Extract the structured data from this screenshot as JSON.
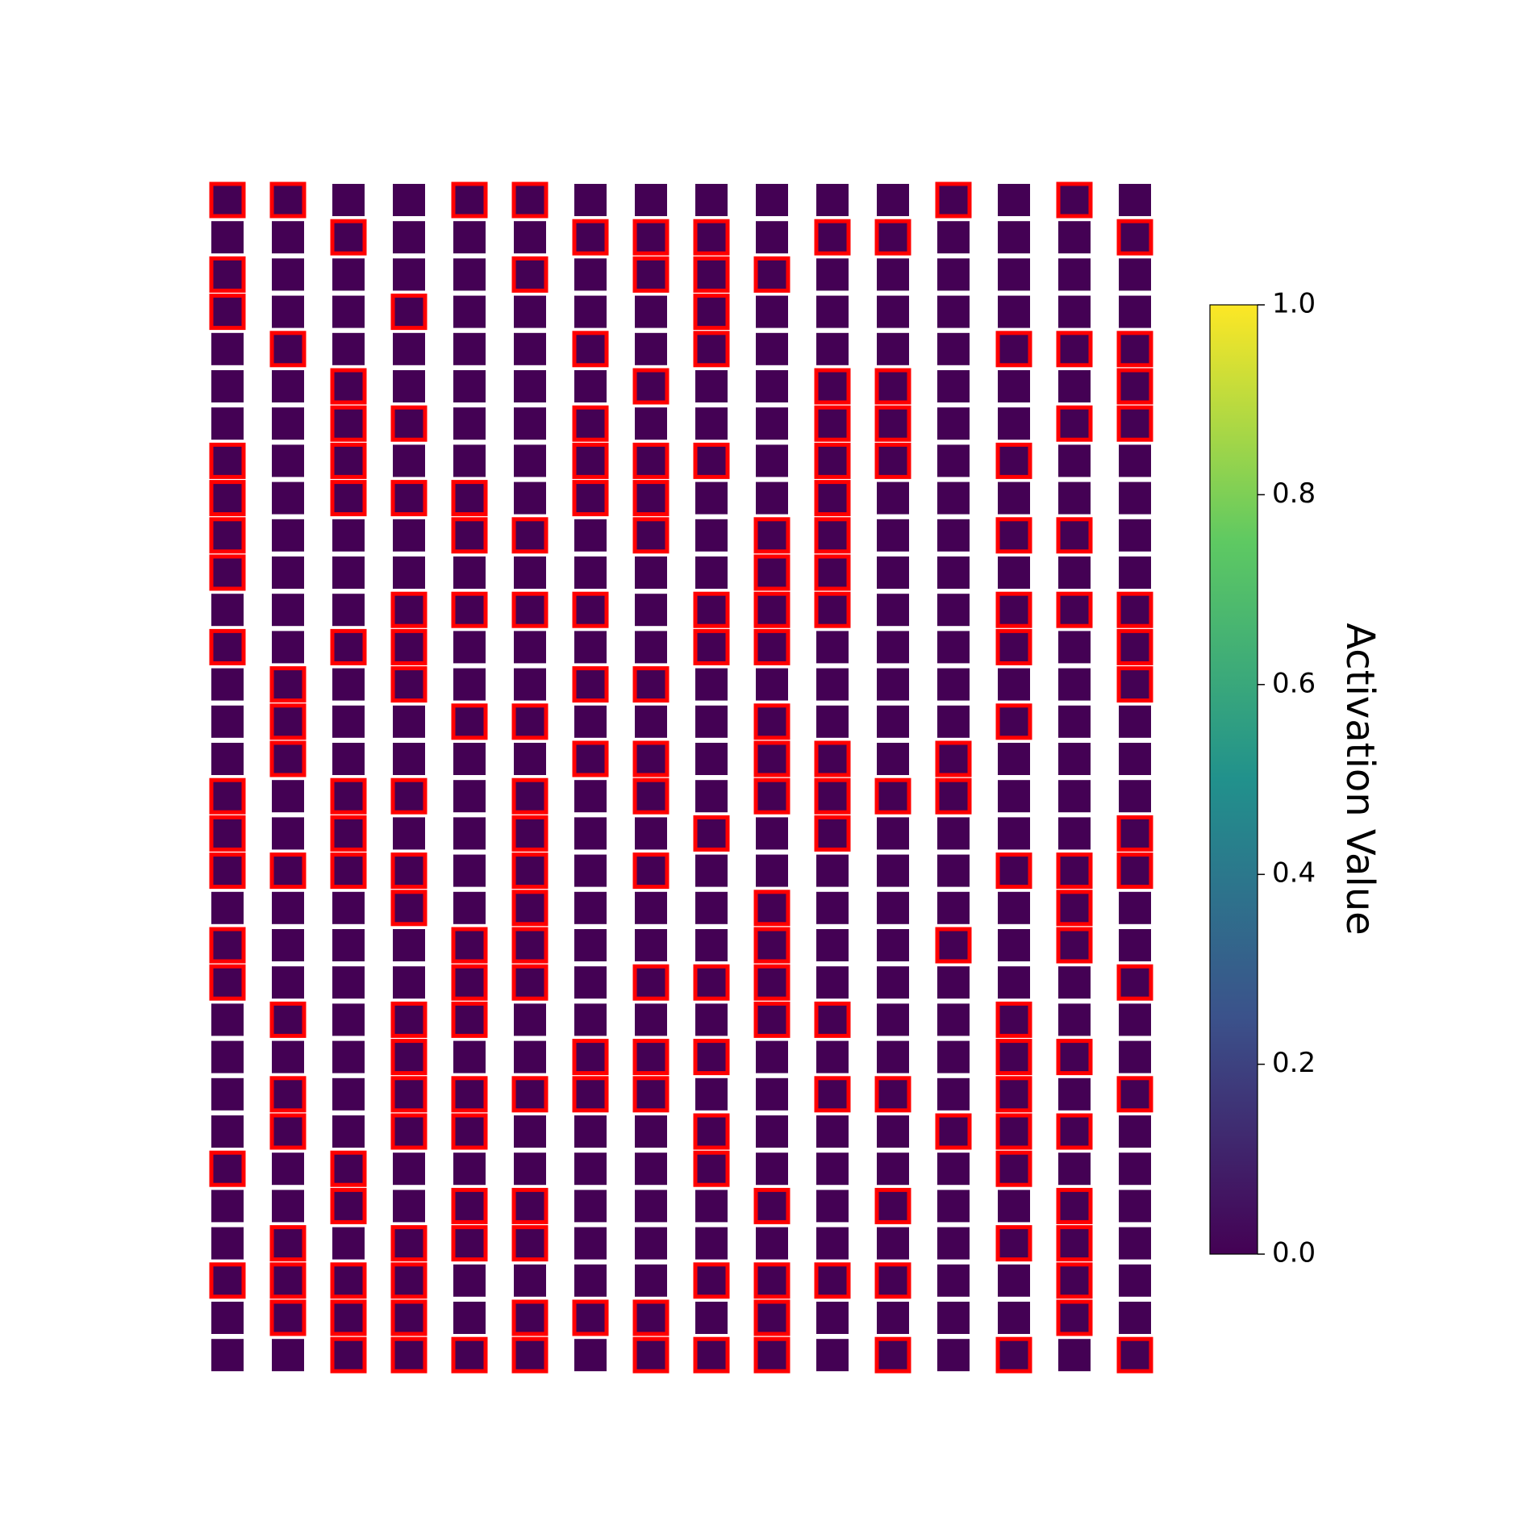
{
  "chart_data": {
    "type": "image-grid",
    "colorbar_label": "Activation Value",
    "colormap": [
      "#440154",
      "#3b528b",
      "#21918c",
      "#5ec962",
      "#fde725"
    ],
    "highlight_color": "#ff0000",
    "ylim": [
      0,
      1
    ],
    "yticks": [
      {
        "value": 0,
        "label": "0.0"
      },
      0.2,
      0.4,
      0.6,
      0.8,
      {
        "value": 1,
        "label": "1.0"
      }
    ],
    "highlighted": [
      [
        1,
        1,
        0,
        0,
        1,
        1,
        0,
        0,
        0,
        0,
        0,
        0,
        1,
        0,
        1,
        0
      ],
      [
        0,
        0,
        1,
        0,
        0,
        0,
        1,
        1,
        1,
        0,
        1,
        1,
        0,
        0,
        0,
        1
      ],
      [
        1,
        0,
        0,
        0,
        0,
        1,
        0,
        1,
        1,
        1,
        0,
        0,
        0,
        0,
        0,
        0
      ],
      [
        1,
        0,
        0,
        1,
        0,
        0,
        0,
        0,
        1,
        0,
        0,
        0,
        0,
        0,
        0,
        0
      ],
      [
        0,
        1,
        0,
        0,
        0,
        0,
        1,
        0,
        1,
        0,
        0,
        0,
        0,
        1,
        1,
        1
      ],
      [
        0,
        0,
        1,
        0,
        0,
        0,
        0,
        1,
        0,
        0,
        1,
        1,
        0,
        0,
        0,
        1
      ],
      [
        0,
        0,
        1,
        1,
        0,
        0,
        1,
        0,
        0,
        0,
        1,
        1,
        0,
        0,
        1,
        1
      ],
      [
        1,
        0,
        1,
        0,
        0,
        0,
        1,
        1,
        1,
        0,
        1,
        1,
        0,
        1,
        0,
        0
      ],
      [
        1,
        0,
        1,
        1,
        1,
        0,
        1,
        1,
        0,
        0,
        1,
        0,
        0,
        0,
        0,
        0
      ],
      [
        1,
        0,
        0,
        0,
        1,
        1,
        0,
        1,
        0,
        1,
        1,
        0,
        0,
        1,
        1,
        0
      ],
      [
        1,
        0,
        0,
        0,
        0,
        0,
        0,
        0,
        0,
        1,
        1,
        0,
        0,
        0,
        0,
        0
      ],
      [
        0,
        0,
        0,
        1,
        1,
        1,
        1,
        0,
        1,
        1,
        1,
        0,
        0,
        1,
        1,
        1
      ],
      [
        1,
        0,
        1,
        1,
        0,
        0,
        0,
        0,
        1,
        1,
        0,
        0,
        0,
        1,
        0,
        1
      ],
      [
        0,
        1,
        0,
        1,
        0,
        0,
        1,
        1,
        0,
        0,
        0,
        0,
        0,
        0,
        0,
        1
      ],
      [
        0,
        1,
        0,
        0,
        1,
        1,
        0,
        0,
        0,
        1,
        0,
        0,
        0,
        1,
        0,
        0
      ],
      [
        0,
        1,
        0,
        0,
        0,
        0,
        1,
        1,
        0,
        1,
        1,
        0,
        1,
        0,
        0,
        0
      ],
      [
        1,
        0,
        1,
        1,
        0,
        1,
        0,
        1,
        0,
        1,
        1,
        1,
        1,
        0,
        0,
        0
      ],
      [
        1,
        0,
        1,
        0,
        0,
        1,
        0,
        0,
        1,
        0,
        1,
        0,
        0,
        0,
        0,
        1
      ],
      [
        1,
        1,
        1,
        1,
        0,
        1,
        0,
        1,
        0,
        0,
        0,
        0,
        0,
        1,
        1,
        1
      ],
      [
        0,
        0,
        0,
        1,
        0,
        1,
        0,
        0,
        0,
        1,
        0,
        0,
        0,
        0,
        1,
        0
      ],
      [
        1,
        0,
        0,
        0,
        1,
        1,
        0,
        0,
        0,
        1,
        0,
        0,
        1,
        0,
        1,
        0
      ],
      [
        1,
        0,
        0,
        0,
        1,
        1,
        0,
        1,
        1,
        1,
        0,
        0,
        0,
        0,
        0,
        1
      ],
      [
        0,
        1,
        0,
        1,
        1,
        0,
        0,
        0,
        0,
        1,
        1,
        0,
        0,
        1,
        0,
        0
      ],
      [
        0,
        0,
        0,
        1,
        0,
        0,
        1,
        1,
        1,
        0,
        0,
        0,
        0,
        1,
        1,
        0
      ],
      [
        0,
        1,
        0,
        1,
        1,
        1,
        1,
        1,
        0,
        0,
        1,
        1,
        0,
        1,
        0,
        1
      ],
      [
        0,
        1,
        0,
        1,
        1,
        0,
        0,
        0,
        1,
        0,
        0,
        0,
        1,
        1,
        1,
        0
      ],
      [
        1,
        0,
        1,
        0,
        0,
        0,
        0,
        0,
        1,
        0,
        0,
        0,
        0,
        1,
        0,
        0
      ],
      [
        0,
        0,
        1,
        0,
        1,
        1,
        0,
        0,
        0,
        1,
        0,
        1,
        0,
        0,
        1,
        0
      ],
      [
        0,
        1,
        0,
        1,
        1,
        1,
        0,
        0,
        0,
        0,
        0,
        0,
        0,
        1,
        1,
        0
      ],
      [
        1,
        1,
        1,
        1,
        0,
        0,
        0,
        0,
        1,
        1,
        1,
        1,
        0,
        0,
        1,
        0
      ],
      [
        0,
        1,
        1,
        1,
        0,
        1,
        1,
        1,
        0,
        1,
        0,
        0,
        0,
        0,
        1,
        0
      ],
      [
        0,
        0,
        1,
        1,
        1,
        1,
        0,
        1,
        1,
        1,
        0,
        1,
        0,
        1,
        0,
        1
      ]
    ]
  }
}
